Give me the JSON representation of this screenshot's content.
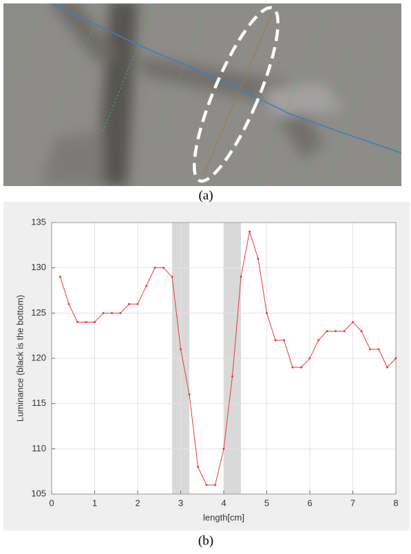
{
  "figure": {
    "caption_a": "(a)",
    "caption_b": "(b)"
  },
  "chart_data": {
    "type": "line",
    "xlabel": "length[cm]",
    "ylabel": "Luminance (black is the bottom)",
    "x": [
      0.2,
      0.4,
      0.6,
      0.8,
      1.0,
      1.2,
      1.4,
      1.6,
      1.8,
      2.0,
      2.2,
      2.4,
      2.6,
      2.8,
      3.0,
      3.2,
      3.4,
      3.6,
      3.8,
      4.0,
      4.2,
      4.4,
      4.6,
      4.8,
      5.0,
      5.2,
      5.4,
      5.6,
      5.8,
      6.0,
      6.2,
      6.4,
      6.6,
      6.8,
      7.0,
      7.2,
      7.4,
      7.6,
      7.8,
      8.0
    ],
    "series": [
      {
        "color": "#e8383d",
        "values": [
          129,
          126,
          124,
          124,
          124,
          125,
          125,
          125,
          126,
          126,
          128,
          130,
          130,
          129,
          121,
          116,
          108,
          106,
          106,
          110,
          118,
          129,
          134,
          131,
          125,
          122,
          122,
          119,
          119,
          120,
          122,
          123,
          123,
          123,
          124,
          123,
          121,
          121,
          119,
          120
        ]
      }
    ],
    "shaded_regions": [
      [
        2.8,
        3.2
      ],
      [
        4.0,
        4.4
      ]
    ],
    "xlim": [
      0,
      8
    ],
    "xticks": [
      0,
      1,
      2,
      3,
      4,
      5,
      6,
      7,
      8
    ],
    "ylim": [
      105,
      135
    ],
    "yticks": [
      105,
      110,
      115,
      120,
      125,
      130,
      135
    ],
    "grid": true
  }
}
